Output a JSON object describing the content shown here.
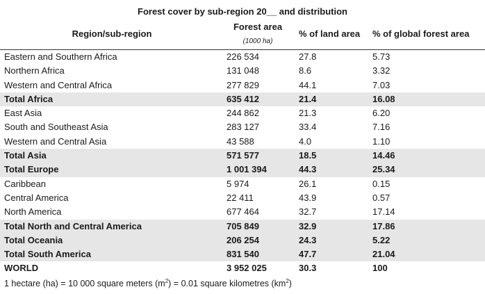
{
  "title": "Forest cover by sub-region 20__ and distribution",
  "headers": {
    "region": "Region/sub-region",
    "forest_area": "Forest area",
    "forest_area_unit": "(1000 ha)",
    "land_pct": "% of land area",
    "global_pct": "% of global forest area"
  },
  "rows": [
    {
      "region": "Eastern and Southern Africa",
      "forest": "226 534",
      "land": "27.8",
      "global": "5.73",
      "total": false
    },
    {
      "region": "Northern Africa",
      "forest": "131 048",
      "land": "8.6",
      "global": "3.32",
      "total": false
    },
    {
      "region": "Western and Central Africa",
      "forest": "277 829",
      "land": "44.1",
      "global": "7.03",
      "total": false
    },
    {
      "region": "Total Africa",
      "forest": "635 412",
      "land": "21.4",
      "global": "16.08",
      "total": true
    },
    {
      "region": "East Asia",
      "forest": "244 862",
      "land": "21.3",
      "global": "6.20",
      "total": false
    },
    {
      "region": "South and Southeast Asia",
      "forest": "283 127",
      "land": "33.4",
      "global": "7.16",
      "total": false
    },
    {
      "region": "Western and Central Asia",
      "forest": "43 588",
      "land": "4.0",
      "global": "1.10",
      "total": false
    },
    {
      "region": "Total Asia",
      "forest": "571 577",
      "land": "18.5",
      "global": "14.46",
      "total": true
    },
    {
      "region": "Total Europe",
      "forest": "1 001 394",
      "land": "44.3",
      "global": "25.34",
      "total": true
    },
    {
      "region": "Caribbean",
      "forest": "5 974",
      "land": "26.1",
      "global": "0.15",
      "total": false
    },
    {
      "region": "Central America",
      "forest": "22 411",
      "land": "43.9",
      "global": "0.57",
      "total": false
    },
    {
      "region": "North America",
      "forest": "677 464",
      "land": "32.7",
      "global": "17.14",
      "total": false
    },
    {
      "region": "Total North and Central America",
      "forest": "705 849",
      "land": "32.9",
      "global": "17.86",
      "total": true
    },
    {
      "region": "Total Oceania",
      "forest": "206 254",
      "land": "24.3",
      "global": "5.22",
      "total": true
    },
    {
      "region": "Total South America",
      "forest": "831 540",
      "land": "47.7",
      "global": "21.04",
      "total": true
    },
    {
      "region": "WORLD",
      "forest": "3 952 025",
      "land": "30.3",
      "global": "100",
      "total": false,
      "world": true
    }
  ],
  "footnote": {
    "part1": "1 hectare (ha) = 10 000 square meters (m",
    "sup1": "2",
    "part2": ") = 0.01 square kilometres (km",
    "sup2": "2",
    "part3": ")"
  },
  "colors": {
    "total_row_bg": "#e6e6e6",
    "text": "#1a1a1a"
  }
}
